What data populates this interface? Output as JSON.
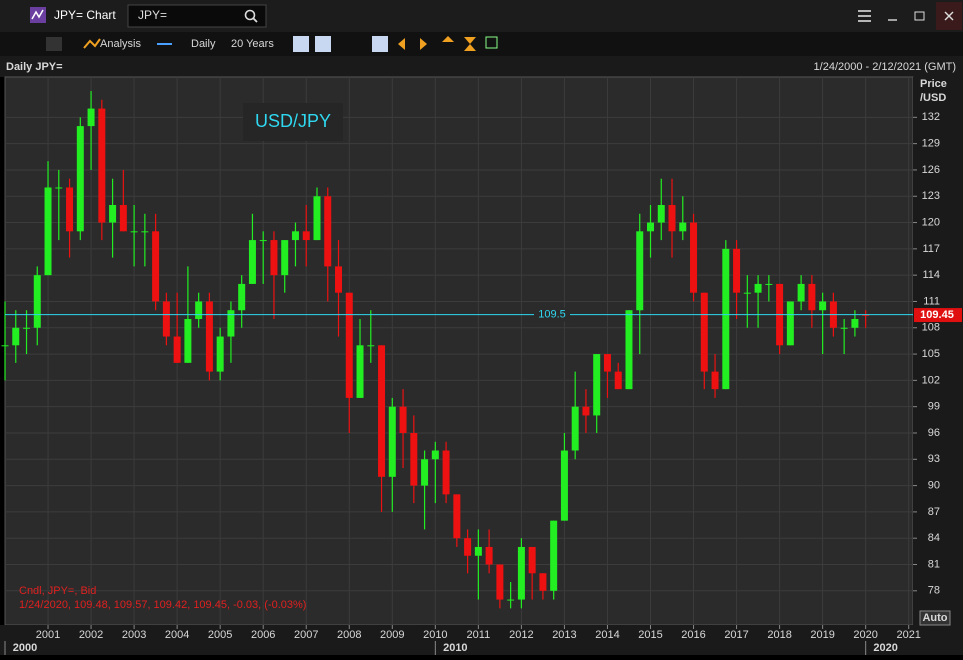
{
  "window": {
    "title": "JPY= Chart",
    "search": "JPY="
  },
  "toolbar": {
    "analysis": "Analysis",
    "interval": "Daily",
    "range": "20 Years"
  },
  "chart_data": {
    "type": "candlestick",
    "title": "Daily JPY=",
    "date_range": "1/24/2000 - 2/12/2021 (GMT)",
    "y_label": [
      "Price",
      "/USD"
    ],
    "legend": "USD/JPY",
    "info": [
      "Cndl, JPY=, Bid",
      "1/24/2020, 109.48, 109.57, 109.42, 109.45, -0.03, (-0.03%)"
    ],
    "scale_mode": "Auto",
    "up_color": "#22ee22",
    "down_color": "#ee1111",
    "grid": true,
    "xlim": [
      2000,
      2021.1
    ],
    "xticks": [
      2001,
      2002,
      2003,
      2004,
      2005,
      2006,
      2007,
      2008,
      2009,
      2010,
      2011,
      2012,
      2013,
      2014,
      2015,
      2016,
      2017,
      2018,
      2019,
      2020,
      2021
    ],
    "decades": [
      2000,
      2010,
      2020
    ],
    "ylim": [
      74.1,
      136.6
    ],
    "yticks": [
      78,
      81,
      84,
      87,
      90,
      93,
      96,
      99,
      102,
      105,
      108,
      111,
      114,
      117,
      120,
      123,
      126,
      129,
      132
    ],
    "hline": 109.5,
    "x": [
      2000,
      2000.25,
      2000.5,
      2000.75,
      2001,
      2001.25,
      2001.5,
      2001.75,
      2002,
      2002.25,
      2002.5,
      2002.75,
      2003,
      2003.25,
      2003.5,
      2003.75,
      2004,
      2004.25,
      2004.5,
      2004.75,
      2005,
      2005.25,
      2005.5,
      2005.75,
      2006,
      2006.25,
      2006.5,
      2006.75,
      2007,
      2007.25,
      2007.5,
      2007.75,
      2008,
      2008.25,
      2008.5,
      2008.75,
      2009,
      2009.25,
      2009.5,
      2009.75,
      2010,
      2010.25,
      2010.5,
      2010.75,
      2011,
      2011.25,
      2011.5,
      2011.75,
      2012,
      2012.25,
      2012.5,
      2012.75,
      2013,
      2013.25,
      2013.5,
      2013.75,
      2014,
      2014.25,
      2014.5,
      2014.75,
      2015,
      2015.25,
      2015.5,
      2015.75,
      2016,
      2016.25,
      2016.5,
      2016.75,
      2017,
      2017.25,
      2017.5,
      2017.75,
      2018,
      2018.25,
      2018.5,
      2018.75,
      2019,
      2019.25,
      2019.5,
      2019.75,
      2020
    ],
    "open": [
      106,
      106,
      108,
      108,
      114,
      124,
      124,
      119,
      131,
      133,
      120,
      122,
      119,
      119,
      119,
      111,
      107,
      104,
      109,
      111,
      103,
      107,
      110,
      113,
      118,
      118,
      114,
      118,
      119,
      118,
      123,
      115,
      112,
      100,
      106,
      106,
      91,
      99,
      96,
      90,
      93,
      94,
      89,
      84,
      82,
      83,
      81,
      77,
      77,
      83,
      80,
      78,
      86,
      94,
      99,
      98,
      105,
      103,
      101,
      110,
      119,
      120,
      122,
      119,
      120,
      112,
      103,
      101,
      117,
      112,
      112,
      113,
      113,
      106,
      111,
      113,
      110,
      111,
      108,
      108,
      109.48
    ],
    "high": [
      111,
      110,
      110,
      115,
      127,
      126,
      125,
      132,
      135,
      134,
      125,
      126,
      122,
      121,
      121,
      112,
      112,
      115,
      112,
      112,
      108,
      111,
      114,
      121,
      119,
      119,
      118,
      120,
      122,
      124,
      124,
      118,
      112,
      109,
      110,
      106,
      100,
      101,
      98,
      94,
      95,
      95,
      89,
      85,
      85,
      85,
      81,
      79,
      84,
      83,
      80,
      86,
      96,
      103,
      101,
      105,
      105,
      104,
      110,
      121,
      122,
      125,
      125,
      123,
      121,
      112,
      105,
      118,
      118,
      114,
      114,
      114,
      113,
      111,
      114,
      114,
      112,
      112,
      109,
      110,
      110
    ],
    "low": [
      102,
      104,
      105,
      106,
      114,
      118,
      116,
      118,
      126,
      118,
      116,
      119,
      115,
      115,
      110,
      106,
      104,
      104,
      108,
      102,
      102,
      104,
      108,
      113,
      113,
      109,
      112,
      115,
      115,
      118,
      111,
      107,
      96,
      100,
      104,
      87,
      87,
      92,
      88,
      85,
      88,
      88,
      83,
      80,
      77,
      80,
      76,
      76,
      76,
      77,
      77,
      77,
      86,
      93,
      96,
      96,
      100,
      101,
      101,
      105,
      116,
      118,
      116,
      118,
      111,
      101,
      100,
      101,
      109,
      108,
      108,
      111,
      105,
      106,
      110,
      108,
      105,
      107,
      105,
      107,
      108
    ],
    "close": [
      106,
      108,
      108,
      114,
      124,
      124,
      119,
      131,
      133,
      120,
      122,
      119,
      119,
      119,
      111,
      107,
      104,
      109,
      111,
      103,
      107,
      110,
      113,
      118,
      118,
      114,
      118,
      119,
      118,
      123,
      115,
      112,
      100,
      106,
      106,
      91,
      99,
      96,
      90,
      93,
      94,
      89,
      84,
      82,
      83,
      81,
      77,
      77,
      83,
      80,
      78,
      86,
      94,
      99,
      98,
      105,
      103,
      101,
      110,
      119,
      120,
      122,
      119,
      120,
      112,
      103,
      101,
      117,
      112,
      112,
      113,
      113,
      106,
      111,
      113,
      110,
      111,
      108,
      108,
      109,
      109.45
    ]
  }
}
